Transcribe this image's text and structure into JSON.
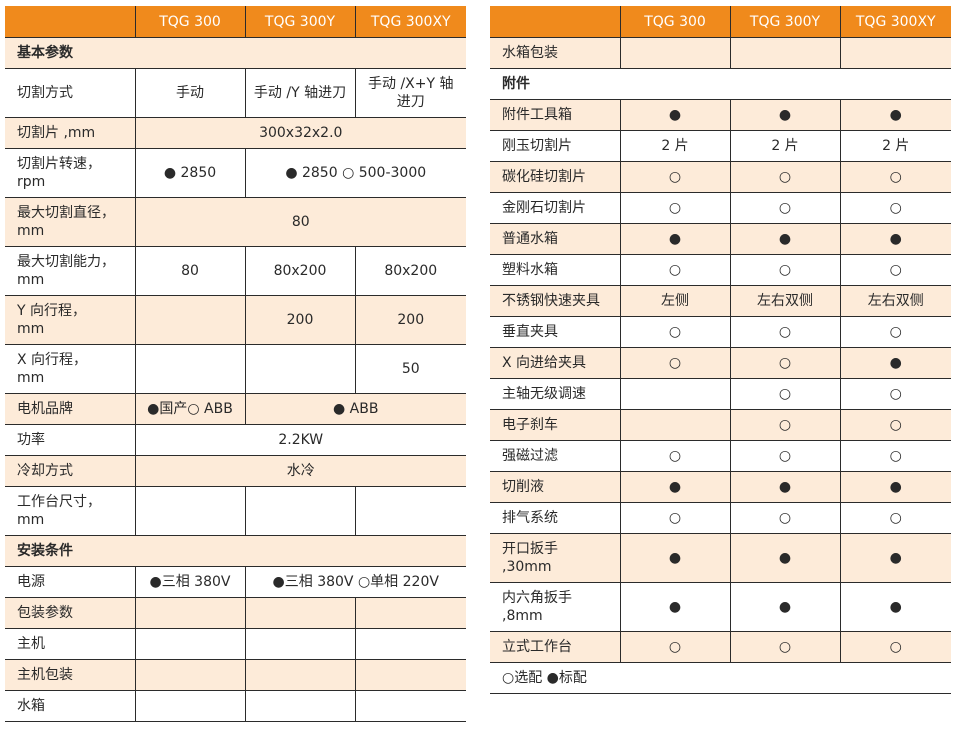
{
  "colors": {
    "header": "#f08a1c",
    "shade": "#fdebd9"
  },
  "left_table": {
    "header": [
      "",
      "TQG 300",
      "TQG 300Y",
      "TQG 300XY"
    ],
    "rows": [
      {
        "section": true,
        "shade": true,
        "cells": [
          {
            "text": "基本参数",
            "span": 4
          }
        ]
      },
      {
        "cells": [
          {
            "text": "切割方式"
          },
          {
            "text": "手动"
          },
          {
            "text": "手动 /Y 轴进刀"
          },
          {
            "text": "手动 /X+Y 轴\n进刀"
          }
        ],
        "tall": true
      },
      {
        "shade": true,
        "cells": [
          {
            "text": "切割片 ,mm"
          },
          {
            "text": "300x32x2.0",
            "span": 3
          }
        ]
      },
      {
        "tall": true,
        "cells": [
          {
            "text": "切割片转速，\nrpm"
          },
          {
            "text": "● 2850"
          },
          {
            "text": "● 2850 ○ 500-3000",
            "span": 2
          }
        ]
      },
      {
        "tall": true,
        "shade": true,
        "cells": [
          {
            "text": "最大切割直径，\nmm"
          },
          {
            "text": "80",
            "span": 3
          }
        ]
      },
      {
        "tall": true,
        "cells": [
          {
            "text": "最大切割能力，\nmm"
          },
          {
            "text": "80"
          },
          {
            "text": "80x200"
          },
          {
            "text": "80x200"
          }
        ]
      },
      {
        "tall": true,
        "shade": true,
        "cells": [
          {
            "text": "Y 向行程，\nmm"
          },
          {
            "text": ""
          },
          {
            "text": "200"
          },
          {
            "text": "200"
          }
        ]
      },
      {
        "tall": true,
        "cells": [
          {
            "text": "X 向行程，\nmm"
          },
          {
            "text": ""
          },
          {
            "text": ""
          },
          {
            "text": "50"
          }
        ]
      },
      {
        "shade": true,
        "cells": [
          {
            "text": "电机品牌"
          },
          {
            "text": "●国产○ ABB"
          },
          {
            "text": "● ABB",
            "span": 2
          }
        ]
      },
      {
        "cells": [
          {
            "text": "功率"
          },
          {
            "text": "2.2KW",
            "span": 3
          }
        ]
      },
      {
        "shade": true,
        "cells": [
          {
            "text": "冷却方式"
          },
          {
            "text": "水冷",
            "span": 3
          }
        ]
      },
      {
        "tall": true,
        "cells": [
          {
            "text": "工作台尺寸，\nmm"
          },
          {
            "text": ""
          },
          {
            "text": ""
          },
          {
            "text": ""
          }
        ]
      },
      {
        "section": true,
        "shade": true,
        "cells": [
          {
            "text": "安装条件",
            "span": 4
          }
        ]
      },
      {
        "cells": [
          {
            "text": "电源"
          },
          {
            "text": "●三相 380V"
          },
          {
            "text": "●三相 380V ○单相 220V",
            "span": 2
          }
        ]
      },
      {
        "shade": true,
        "cells": [
          {
            "text": "包装参数"
          },
          {
            "text": ""
          },
          {
            "text": ""
          },
          {
            "text": ""
          }
        ]
      },
      {
        "cells": [
          {
            "text": "主机"
          },
          {
            "text": ""
          },
          {
            "text": ""
          },
          {
            "text": ""
          }
        ]
      },
      {
        "shade": true,
        "cells": [
          {
            "text": "主机包装"
          },
          {
            "text": ""
          },
          {
            "text": ""
          },
          {
            "text": ""
          }
        ]
      },
      {
        "cells": [
          {
            "text": "水箱"
          },
          {
            "text": ""
          },
          {
            "text": ""
          },
          {
            "text": ""
          }
        ]
      }
    ]
  },
  "right_table": {
    "header": [
      "",
      "TQG 300",
      "TQG 300Y",
      "TQG 300XY"
    ],
    "rows": [
      {
        "shade": true,
        "cells": [
          {
            "text": "水箱包装"
          },
          {
            "text": ""
          },
          {
            "text": ""
          },
          {
            "text": ""
          }
        ]
      },
      {
        "section": true,
        "cells": [
          {
            "text": "附件",
            "span": 4
          }
        ]
      },
      {
        "shade": true,
        "cells": [
          {
            "text": "附件工具箱"
          },
          {
            "text": "●"
          },
          {
            "text": "●"
          },
          {
            "text": "●"
          }
        ]
      },
      {
        "cells": [
          {
            "text": "刚玉切割片"
          },
          {
            "text": "2 片"
          },
          {
            "text": "2 片"
          },
          {
            "text": "2 片"
          }
        ]
      },
      {
        "shade": true,
        "cells": [
          {
            "text": "碳化硅切割片"
          },
          {
            "text": "○"
          },
          {
            "text": "○"
          },
          {
            "text": "○"
          }
        ]
      },
      {
        "cells": [
          {
            "text": "金刚石切割片"
          },
          {
            "text": "○"
          },
          {
            "text": "○"
          },
          {
            "text": "○"
          }
        ]
      },
      {
        "shade": true,
        "cells": [
          {
            "text": "普通水箱"
          },
          {
            "text": "●"
          },
          {
            "text": "●"
          },
          {
            "text": "●"
          }
        ]
      },
      {
        "cells": [
          {
            "text": "塑料水箱"
          },
          {
            "text": "○"
          },
          {
            "text": "○"
          },
          {
            "text": "○"
          }
        ]
      },
      {
        "shade": true,
        "cells": [
          {
            "text": "不锈钢快速夹具"
          },
          {
            "text": "左侧"
          },
          {
            "text": "左右双侧"
          },
          {
            "text": "左右双侧"
          }
        ]
      },
      {
        "cells": [
          {
            "text": "垂直夹具"
          },
          {
            "text": "○"
          },
          {
            "text": "○"
          },
          {
            "text": "○"
          }
        ]
      },
      {
        "shade": true,
        "cells": [
          {
            "text": "X 向进给夹具"
          },
          {
            "text": "○"
          },
          {
            "text": "○"
          },
          {
            "text": "●"
          }
        ]
      },
      {
        "cells": [
          {
            "text": "主轴无级调速"
          },
          {
            "text": ""
          },
          {
            "text": "○"
          },
          {
            "text": "○"
          }
        ]
      },
      {
        "shade": true,
        "cells": [
          {
            "text": "电子刹车"
          },
          {
            "text": ""
          },
          {
            "text": "○"
          },
          {
            "text": "○"
          }
        ]
      },
      {
        "cells": [
          {
            "text": "强磁过滤"
          },
          {
            "text": "○"
          },
          {
            "text": "○"
          },
          {
            "text": "○"
          }
        ]
      },
      {
        "shade": true,
        "cells": [
          {
            "text": "切削液"
          },
          {
            "text": "●"
          },
          {
            "text": "●"
          },
          {
            "text": "●"
          }
        ]
      },
      {
        "cells": [
          {
            "text": "排气系统"
          },
          {
            "text": "○"
          },
          {
            "text": "○"
          },
          {
            "text": "○"
          }
        ]
      },
      {
        "tall": true,
        "shade": true,
        "cells": [
          {
            "text": "开口扳手\n,30mm"
          },
          {
            "text": "●"
          },
          {
            "text": "●"
          },
          {
            "text": "●"
          }
        ]
      },
      {
        "tall": true,
        "cells": [
          {
            "text": "内六角扳手\n,8mm"
          },
          {
            "text": "●"
          },
          {
            "text": "●"
          },
          {
            "text": "●"
          }
        ]
      },
      {
        "shade": true,
        "cells": [
          {
            "text": "立式工作台"
          },
          {
            "text": "○"
          },
          {
            "text": "○"
          },
          {
            "text": "○"
          }
        ]
      },
      {
        "legend": true,
        "cells": [
          {
            "text": "○选配  ●标配",
            "span": 4
          }
        ]
      }
    ]
  }
}
